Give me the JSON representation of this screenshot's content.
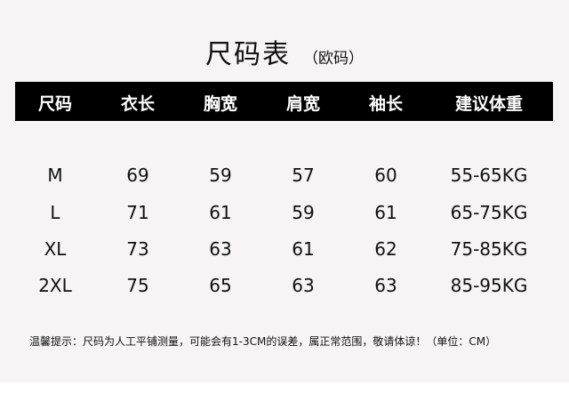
{
  "title": "尺码表",
  "subtitle": "（欧码）",
  "headers": [
    "尺码",
    "衣长",
    "胸宽",
    "肩宽",
    "袖长",
    "建议体重"
  ],
  "rows": [
    [
      "M",
      "69",
      "59",
      "57",
      "60",
      "55-65KG"
    ],
    [
      "L",
      "71",
      "61",
      "59",
      "61",
      "65-75KG"
    ],
    [
      "XL",
      "73",
      "63",
      "61",
      "62",
      "75-85KG"
    ],
    [
      "2XL",
      "75",
      "65",
      "63",
      "63",
      "85-95KG"
    ]
  ],
  "note": "温馨提示：尺码为人工平铺测量，可能会有1-3CM的误差，属正常范围，敬请体谅！（单位：CM）"
}
